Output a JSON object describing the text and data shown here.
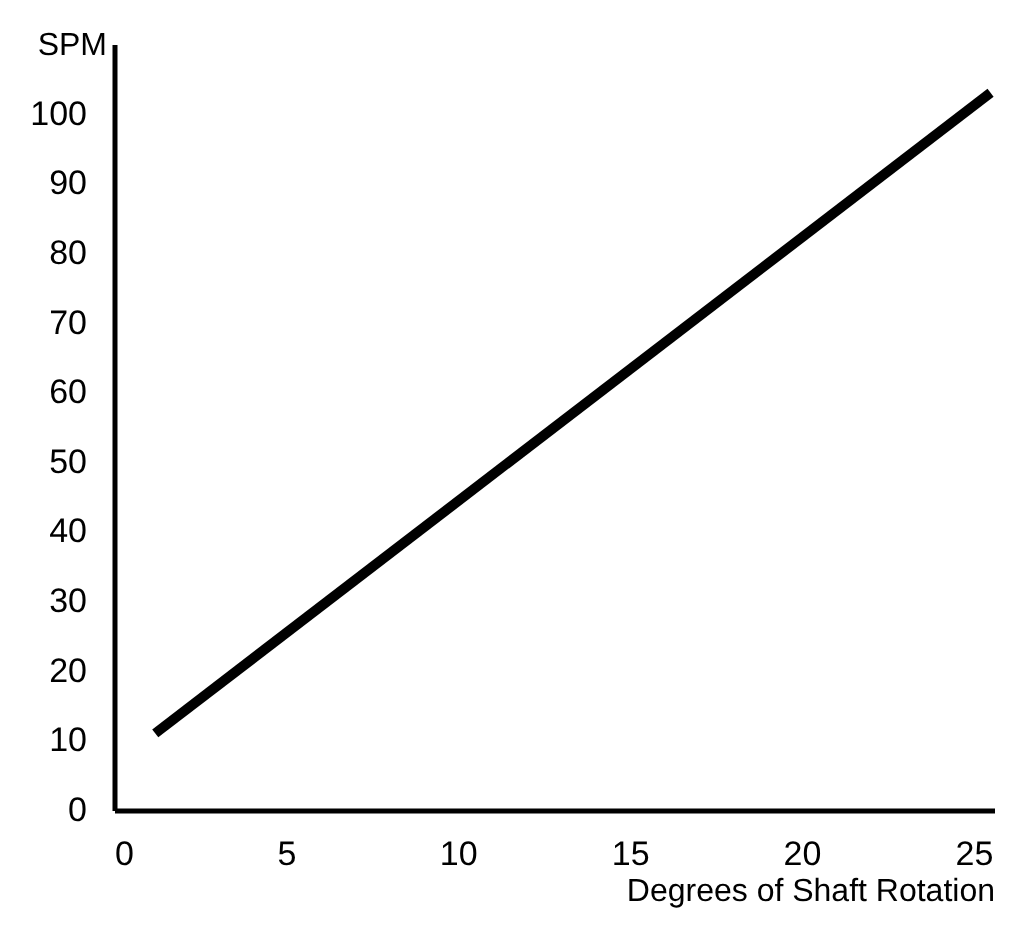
{
  "chart_data": {
    "type": "line",
    "xlabel": "Degrees of Shaft Rotation",
    "ylabel": "SPM",
    "x": [
      1.2,
      25.5
    ],
    "series": [
      {
        "color": "#000000",
        "values": [
          11,
          103
        ]
      }
    ],
    "xlim": [
      0,
      25.6
    ],
    "ylim": [
      0,
      110
    ],
    "xticks": [
      0,
      5,
      10,
      15,
      20,
      25
    ],
    "yticks": [
      0,
      10,
      20,
      30,
      40,
      50,
      60,
      70,
      80,
      90,
      100
    ],
    "grid": false,
    "marker": "none",
    "line_style": "solid"
  }
}
